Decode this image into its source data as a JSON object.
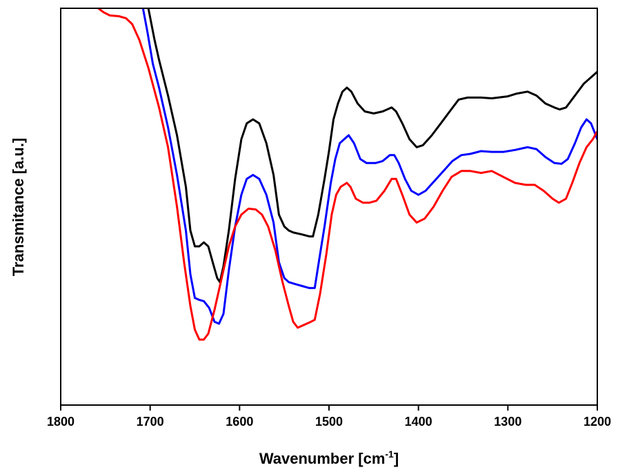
{
  "chart_data": {
    "type": "line",
    "title": "",
    "xlabel_main": "Wavenumber [cm",
    "xlabel_sup": "-1",
    "xlabel_tail": "]",
    "ylabel": "Transmitance [a.u.]",
    "xlim": [
      1800,
      1200
    ],
    "ylim": [
      0,
      100
    ],
    "x_reversed": true,
    "xticks": [
      1800,
      1700,
      1600,
      1500,
      1400,
      1300,
      1200
    ],
    "xtick_labels": [
      "1800",
      "1700",
      "1600",
      "1500",
      "1400",
      "1300",
      "1200"
    ],
    "y_tick_labels_shown": false,
    "grid": false,
    "legend": "none",
    "series": [
      {
        "color": "#000000",
        "points": [
          [
            1702,
            100
          ],
          [
            1695,
            92
          ],
          [
            1690,
            87
          ],
          [
            1680,
            78
          ],
          [
            1670,
            68
          ],
          [
            1660,
            55
          ],
          [
            1655,
            44
          ],
          [
            1650,
            40
          ],
          [
            1645,
            40
          ],
          [
            1640,
            41
          ],
          [
            1635,
            40
          ],
          [
            1630,
            36
          ],
          [
            1625,
            32
          ],
          [
            1622,
            31
          ],
          [
            1618,
            35
          ],
          [
            1612,
            44
          ],
          [
            1605,
            57
          ],
          [
            1598,
            67
          ],
          [
            1592,
            71
          ],
          [
            1585,
            72
          ],
          [
            1578,
            71
          ],
          [
            1570,
            66
          ],
          [
            1562,
            58
          ],
          [
            1556,
            48
          ],
          [
            1550,
            45
          ],
          [
            1545,
            44
          ],
          [
            1540,
            43.5
          ],
          [
            1530,
            43
          ],
          [
            1522,
            42.5
          ],
          [
            1518,
            42.5
          ],
          [
            1512,
            48
          ],
          [
            1505,
            57
          ],
          [
            1500,
            64
          ],
          [
            1495,
            72
          ],
          [
            1490,
            76
          ],
          [
            1485,
            79
          ],
          [
            1480,
            80
          ],
          [
            1475,
            79
          ],
          [
            1468,
            76
          ],
          [
            1460,
            74
          ],
          [
            1450,
            73.5
          ],
          [
            1440,
            74
          ],
          [
            1430,
            75
          ],
          [
            1425,
            74
          ],
          [
            1418,
            71
          ],
          [
            1410,
            67
          ],
          [
            1402,
            65
          ],
          [
            1395,
            65.5
          ],
          [
            1385,
            68
          ],
          [
            1375,
            71
          ],
          [
            1365,
            74
          ],
          [
            1355,
            77
          ],
          [
            1345,
            77.5
          ],
          [
            1330,
            77.5
          ],
          [
            1318,
            77.3
          ],
          [
            1300,
            77.8
          ],
          [
            1290,
            78.5
          ],
          [
            1278,
            79
          ],
          [
            1268,
            78
          ],
          [
            1258,
            76
          ],
          [
            1248,
            75
          ],
          [
            1242,
            74.5
          ],
          [
            1235,
            75
          ],
          [
            1225,
            78
          ],
          [
            1215,
            81
          ],
          [
            1205,
            83
          ],
          [
            1200,
            84
          ]
        ]
      },
      {
        "color": "#0000ff",
        "points": [
          [
            1708,
            100
          ],
          [
            1703,
            94
          ],
          [
            1697,
            86
          ],
          [
            1690,
            80
          ],
          [
            1680,
            70
          ],
          [
            1670,
            58
          ],
          [
            1660,
            44
          ],
          [
            1655,
            33
          ],
          [
            1650,
            27
          ],
          [
            1645,
            26.5
          ],
          [
            1640,
            26.2
          ],
          [
            1634,
            24.5
          ],
          [
            1628,
            21
          ],
          [
            1623,
            20.5
          ],
          [
            1618,
            23
          ],
          [
            1612,
            34
          ],
          [
            1605,
            45
          ],
          [
            1598,
            53
          ],
          [
            1592,
            57
          ],
          [
            1585,
            58
          ],
          [
            1578,
            57
          ],
          [
            1570,
            53
          ],
          [
            1562,
            46
          ],
          [
            1556,
            36
          ],
          [
            1550,
            32
          ],
          [
            1545,
            31
          ],
          [
            1538,
            30.5
          ],
          [
            1530,
            30
          ],
          [
            1522,
            29.5
          ],
          [
            1516,
            29.5
          ],
          [
            1510,
            38
          ],
          [
            1505,
            45
          ],
          [
            1498,
            56
          ],
          [
            1493,
            62
          ],
          [
            1488,
            66
          ],
          [
            1483,
            67
          ],
          [
            1478,
            68
          ],
          [
            1472,
            66
          ],
          [
            1465,
            62
          ],
          [
            1458,
            61
          ],
          [
            1448,
            61
          ],
          [
            1440,
            61.5
          ],
          [
            1432,
            63
          ],
          [
            1427,
            63
          ],
          [
            1422,
            61
          ],
          [
            1415,
            57
          ],
          [
            1408,
            54
          ],
          [
            1400,
            53
          ],
          [
            1392,
            54
          ],
          [
            1382,
            56.5
          ],
          [
            1372,
            59
          ],
          [
            1362,
            61.5
          ],
          [
            1352,
            63
          ],
          [
            1342,
            63.3
          ],
          [
            1330,
            64
          ],
          [
            1318,
            63.8
          ],
          [
            1305,
            63.8
          ],
          [
            1292,
            64.3
          ],
          [
            1278,
            65
          ],
          [
            1268,
            64.5
          ],
          [
            1258,
            62.5
          ],
          [
            1248,
            61
          ],
          [
            1240,
            60.8
          ],
          [
            1233,
            62
          ],
          [
            1225,
            66
          ],
          [
            1218,
            70
          ],
          [
            1212,
            72
          ],
          [
            1207,
            71
          ],
          [
            1200,
            67
          ]
        ]
      },
      {
        "color": "#ff0000",
        "points": [
          [
            1758,
            100
          ],
          [
            1752,
            99
          ],
          [
            1745,
            98.2
          ],
          [
            1735,
            98
          ],
          [
            1727,
            97.5
          ],
          [
            1720,
            96
          ],
          [
            1712,
            92
          ],
          [
            1702,
            85
          ],
          [
            1690,
            75
          ],
          [
            1680,
            65
          ],
          [
            1670,
            50
          ],
          [
            1662,
            36
          ],
          [
            1655,
            25
          ],
          [
            1650,
            19
          ],
          [
            1645,
            16.5
          ],
          [
            1640,
            16.5
          ],
          [
            1635,
            18
          ],
          [
            1628,
            24
          ],
          [
            1620,
            32
          ],
          [
            1612,
            40
          ],
          [
            1605,
            45
          ],
          [
            1598,
            48
          ],
          [
            1590,
            49.5
          ],
          [
            1582,
            49.3
          ],
          [
            1575,
            48
          ],
          [
            1568,
            45
          ],
          [
            1560,
            39
          ],
          [
            1552,
            31
          ],
          [
            1545,
            25
          ],
          [
            1540,
            21
          ],
          [
            1535,
            19.5
          ],
          [
            1530,
            20
          ],
          [
            1522,
            20.8
          ],
          [
            1516,
            21.5
          ],
          [
            1510,
            28
          ],
          [
            1503,
            38
          ],
          [
            1497,
            48
          ],
          [
            1492,
            53
          ],
          [
            1487,
            55
          ],
          [
            1480,
            56
          ],
          [
            1476,
            55
          ],
          [
            1470,
            52
          ],
          [
            1462,
            51
          ],
          [
            1455,
            51
          ],
          [
            1447,
            51.5
          ],
          [
            1438,
            54
          ],
          [
            1430,
            57
          ],
          [
            1425,
            57
          ],
          [
            1418,
            53
          ],
          [
            1410,
            48
          ],
          [
            1402,
            46
          ],
          [
            1393,
            47
          ],
          [
            1383,
            50
          ],
          [
            1373,
            54
          ],
          [
            1363,
            57.5
          ],
          [
            1352,
            59
          ],
          [
            1342,
            59
          ],
          [
            1330,
            58.5
          ],
          [
            1318,
            59
          ],
          [
            1305,
            57.5
          ],
          [
            1292,
            56
          ],
          [
            1280,
            55.5
          ],
          [
            1270,
            55.5
          ],
          [
            1260,
            54
          ],
          [
            1250,
            52
          ],
          [
            1243,
            51
          ],
          [
            1235,
            52
          ],
          [
            1228,
            56
          ],
          [
            1220,
            61
          ],
          [
            1212,
            65
          ],
          [
            1205,
            67
          ],
          [
            1200,
            69
          ]
        ]
      }
    ]
  }
}
